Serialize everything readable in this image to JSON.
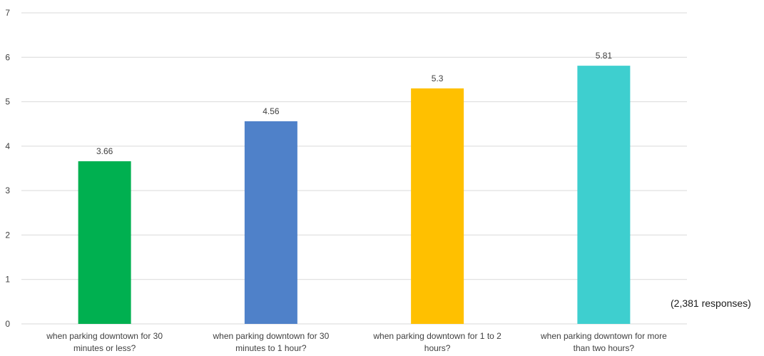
{
  "chart_data": {
    "type": "bar",
    "categories": [
      [
        "when parking downtown for 30",
        "minutes or less?"
      ],
      [
        "when parking downtown for 30",
        "minutes to 1 hour?"
      ],
      [
        "when parking downtown for 1 to 2",
        "hours?"
      ],
      [
        "when parking downtown for more",
        "than two hours?"
      ]
    ],
    "values": [
      3.66,
      4.56,
      5.3,
      5.81
    ],
    "value_labels": [
      "3.66",
      "4.56",
      "5.3",
      "5.81"
    ],
    "colors": [
      "#00b050",
      "#4f81c9",
      "#ffc000",
      "#3ecfcf"
    ],
    "ylim": [
      0,
      7
    ],
    "yticks": [
      "0",
      "1",
      "2",
      "3",
      "4",
      "5",
      "6",
      "7"
    ],
    "grid": true,
    "gridline_color": "#d9d9d9",
    "legend": "none",
    "title": "",
    "xlabel": "",
    "ylabel": "",
    "annotation": "(2,381 responses)"
  }
}
